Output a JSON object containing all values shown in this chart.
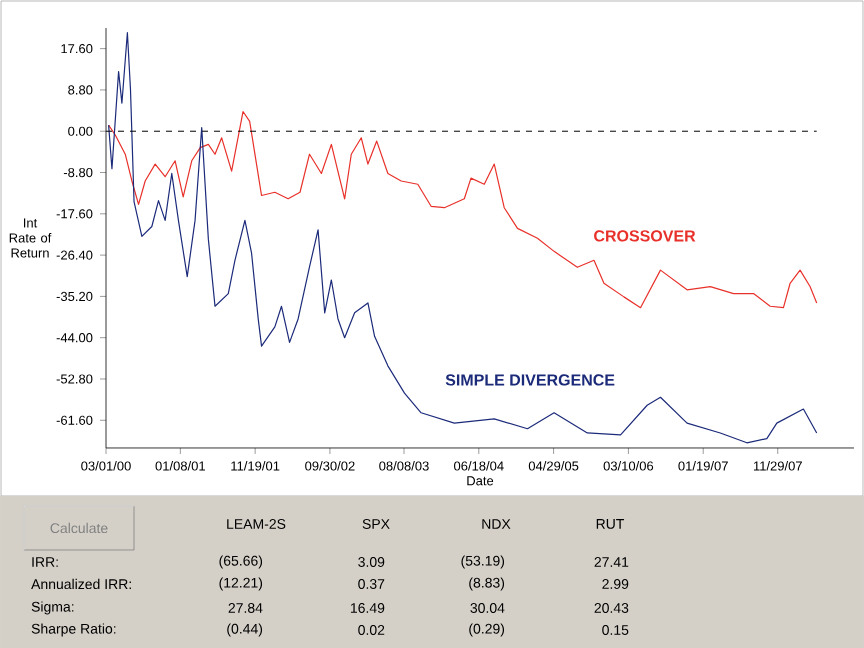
{
  "chart_data": {
    "type": "line",
    "xlabel": "Date",
    "ylabel": "Int Rate of Return",
    "xlim": [
      "2000-03-01",
      "2008-10-15"
    ],
    "ylim": [
      -67.5,
      22
    ],
    "xticks": [
      {
        "value": "2000-03-01",
        "label": "03/01/00"
      },
      {
        "value": "2001-01-08",
        "label": "01/08/01"
      },
      {
        "value": "2001-11-19",
        "label": "11/19/01"
      },
      {
        "value": "2002-09-30",
        "label": "09/30/02"
      },
      {
        "value": "2003-08-08",
        "label": "08/08/03"
      },
      {
        "value": "2004-06-18",
        "label": "06/18/04"
      },
      {
        "value": "2005-04-29",
        "label": "04/29/05"
      },
      {
        "value": "2006-03-10",
        "label": "03/10/06"
      },
      {
        "value": "2007-01-19",
        "label": "01/19/07"
      },
      {
        "value": "2007-11-29",
        "label": "11/29/07"
      }
    ],
    "yticks": [
      {
        "value": 17.6,
        "label": "17.60"
      },
      {
        "value": 8.8,
        "label": "8.80"
      },
      {
        "value": 0,
        "label": "0.00"
      },
      {
        "value": -8.8,
        "label": "-8.80"
      },
      {
        "value": -17.6,
        "label": "-17.60"
      },
      {
        "value": -26.4,
        "label": "-26.40"
      },
      {
        "value": -35.2,
        "label": "-35.20"
      },
      {
        "value": -44,
        "label": "-44.00"
      },
      {
        "value": -52.8,
        "label": "-52.80"
      },
      {
        "value": -61.6,
        "label": "-61.60"
      }
    ],
    "line_style": "solid",
    "series": [
      {
        "name": "CROSSOVER",
        "color": "#e8312a",
        "x": [
          "2000-03-12",
          "2000-04-09",
          "2000-05-21",
          "2000-06-18",
          "2000-07-16",
          "2000-08-13",
          "2000-09-24",
          "2000-11-05",
          "2000-12-17",
          "2001-01-20",
          "2001-02-25",
          "2001-04-02",
          "2001-05-06",
          "2001-06-03",
          "2001-07-01",
          "2001-08-12",
          "2001-09-29",
          "2001-10-27",
          "2001-12-16",
          "2002-02-10",
          "2002-04-07",
          "2002-05-27",
          "2002-07-06",
          "2002-08-25",
          "2002-10-06",
          "2002-12-01",
          "2002-12-29",
          "2003-02-09",
          "2003-03-09",
          "2003-04-15",
          "2003-06-01",
          "2003-07-27",
          "2003-10-05",
          "2003-11-30",
          "2004-01-25",
          "2004-04-18",
          "2004-05-16",
          "2004-07-11",
          "2004-08-22",
          "2004-10-03",
          "2004-11-28",
          "2005-02-20",
          "2005-05-01",
          "2005-08-07",
          "2005-10-16",
          "2005-11-27",
          "2006-02-19",
          "2006-04-30",
          "2006-07-23",
          "2006-11-12",
          "2007-02-18",
          "2007-05-27",
          "2007-08-19",
          "2007-10-28",
          "2007-12-23",
          "2008-01-20",
          "2008-03-02",
          "2008-04-13",
          "2008-05-11"
        ],
        "values": [
          1.3,
          -0.8,
          -4.9,
          -10.6,
          -15.6,
          -10.6,
          -7,
          -9.7,
          -6.3,
          -14,
          -6.3,
          -3.5,
          -2.8,
          -4.9,
          -1.4,
          -8.5,
          4.2,
          2.1,
          -13.7,
          -13,
          -14.4,
          -13,
          -4.9,
          -9,
          -2.8,
          -14.4,
          -4.9,
          -1.4,
          -7,
          -2.1,
          -9,
          -10.6,
          -11.3,
          -16,
          -16.3,
          -14.4,
          -10,
          -11.3,
          -7,
          -16.3,
          -20.7,
          -22.8,
          -25.6,
          -29,
          -27.5,
          -32.4,
          -35.3,
          -37.6,
          -29.6,
          -33.8,
          -33.1,
          -34.6,
          -34.6,
          -37.3,
          -37.6,
          -32.4,
          -29.6,
          -33.1,
          -36.6
        ]
      },
      {
        "name": "SIMPLE DIVERGENCE",
        "color": "#1c2a7a",
        "x": [
          "2000-03-12",
          "2000-03-26",
          "2000-04-23",
          "2000-05-07",
          "2000-05-30",
          "2000-06-12",
          "2000-06-27",
          "2000-07-30",
          "2000-09-10",
          "2000-10-08",
          "2000-11-05",
          "2000-12-03",
          "2000-12-31",
          "2001-02-06",
          "2001-03-11",
          "2001-04-08",
          "2001-05-06",
          "2001-06-03",
          "2001-07-29",
          "2001-08-26",
          "2001-10-07",
          "2001-11-04",
          "2001-12-02",
          "2001-12-16",
          "2002-02-10",
          "2002-03-10",
          "2002-04-13",
          "2002-05-19",
          "2002-07-06",
          "2002-08-11",
          "2002-09-08",
          "2002-10-06",
          "2002-11-03",
          "2002-12-01",
          "2003-01-12",
          "2003-03-09",
          "2003-04-06",
          "2003-06-01",
          "2003-08-10",
          "2003-10-19",
          "2004-03-07",
          "2004-08-22",
          "2005-01-09",
          "2005-05-01",
          "2005-09-18",
          "2006-02-05",
          "2006-05-28",
          "2006-07-23",
          "2006-11-12",
          "2007-04-01",
          "2007-07-22",
          "2007-10-14",
          "2007-11-25",
          "2008-03-16",
          "2008-05-11"
        ],
        "values": [
          1.3,
          -8,
          12.7,
          6,
          21,
          9,
          -15,
          -22.4,
          -20.3,
          -14.8,
          -19,
          -9,
          -19,
          -31,
          -19,
          0.8,
          -23,
          -37.3,
          -34.6,
          -27.5,
          -19,
          -26,
          -40,
          -45.8,
          -41.7,
          -37.3,
          -45,
          -40,
          -28.9,
          -21,
          -38.7,
          -31.7,
          -40,
          -44,
          -38.7,
          -36.6,
          -43.7,
          -50,
          -55.8,
          -60,
          -62.2,
          -61.3,
          -63.4,
          -60,
          -64.3,
          -64.7,
          -58.4,
          -56.7,
          -62.2,
          -64.3,
          -66.4,
          -65.5,
          -62.2,
          -59.2,
          -64.3
        ]
      }
    ],
    "ref_lines": [
      {
        "axis": "y",
        "value": 0,
        "color": "#000000",
        "line_style": "dashed"
      }
    ],
    "annotations": [
      "Calculate",
      "LEAM-2S",
      "SPX",
      "NDX",
      "RUT",
      "IRR:",
      "(65.66)",
      "3.09",
      "(53.19)",
      "27.41",
      "Annualized IRR:",
      "(12.21)",
      "0.37",
      "(8.83)",
      "2.99",
      "Sigma:",
      "27.84",
      "16.49",
      "30.04",
      "20.43",
      "Sharpe Ratio:",
      "(0.44)",
      "0.02",
      "(0.29)",
      "0.15"
    ]
  }
}
